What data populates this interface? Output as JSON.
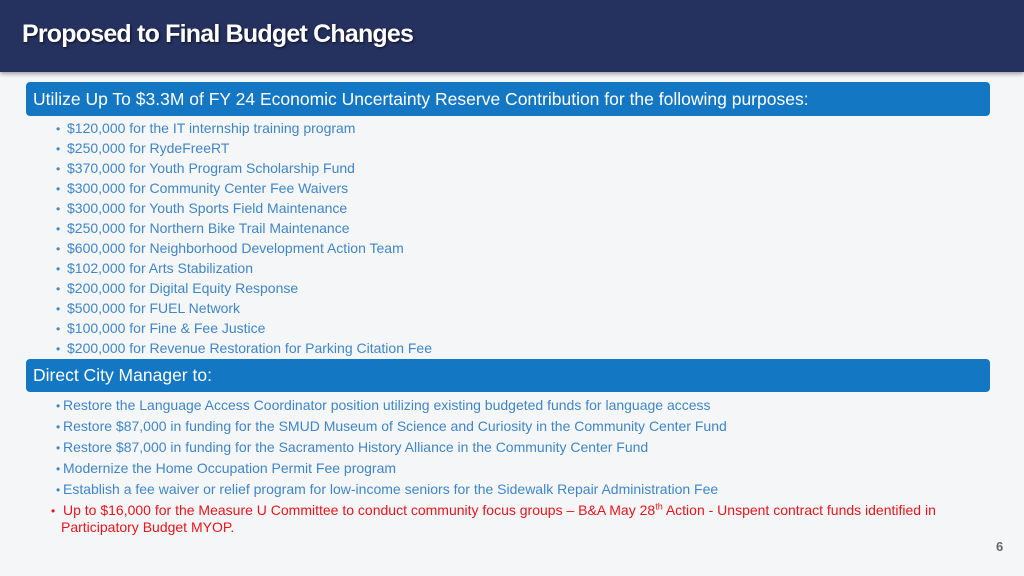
{
  "title": "Proposed to Final Budget Changes",
  "section1": {
    "header": "Utilize Up To $3.3M of FY 24 Economic Uncertainty Reserve Contribution for the following purposes:",
    "items": [
      "$120,000 for the IT internship training program",
      "$250,000 for RydeFreeRT",
      "$370,000 for Youth Program Scholarship Fund",
      "$300,000 for Community Center Fee Waivers",
      "$300,000 for Youth Sports Field Maintenance",
      "$250,000 for Northern Bike Trail Maintenance",
      "$600,000 for Neighborhood Development Action Team",
      "$102,000 for Arts Stabilization",
      "$200,000 for Digital Equity Response",
      "$500,000 for FUEL Network",
      "$100,000 for Fine & Fee Justice",
      "$200,000 for Revenue Restoration for Parking Citation Fee"
    ]
  },
  "section2": {
    "header": "Direct City Manager to:",
    "items": [
      "Restore the Language Access Coordinator position utilizing existing budgeted funds for language access",
      "Restore $87,000 in funding for the SMUD Museum of Science and Curiosity in the Community Center Fund",
      "Restore $87,000 in funding for the Sacramento History Alliance in the Community Center Fund",
      "Modernize the Home Occupation Permit Fee program",
      "Establish a fee waiver or relief program for low-income seniors for the Sidewalk Repair Administration Fee"
    ],
    "highlight": {
      "before": "Up to $16,000 for the Measure U Committee to conduct community focus groups – B&A May 28",
      "sup": "th",
      "after": " Action - Unspent contract funds identified in Participatory Budget MYOP."
    }
  },
  "bullet_glyph": "•",
  "page_number": "6",
  "colors": {
    "title_bar": "#25315e",
    "header_box": "#1477c4",
    "list_text": "#3f86c8",
    "highlight_text": "#e8141b"
  }
}
